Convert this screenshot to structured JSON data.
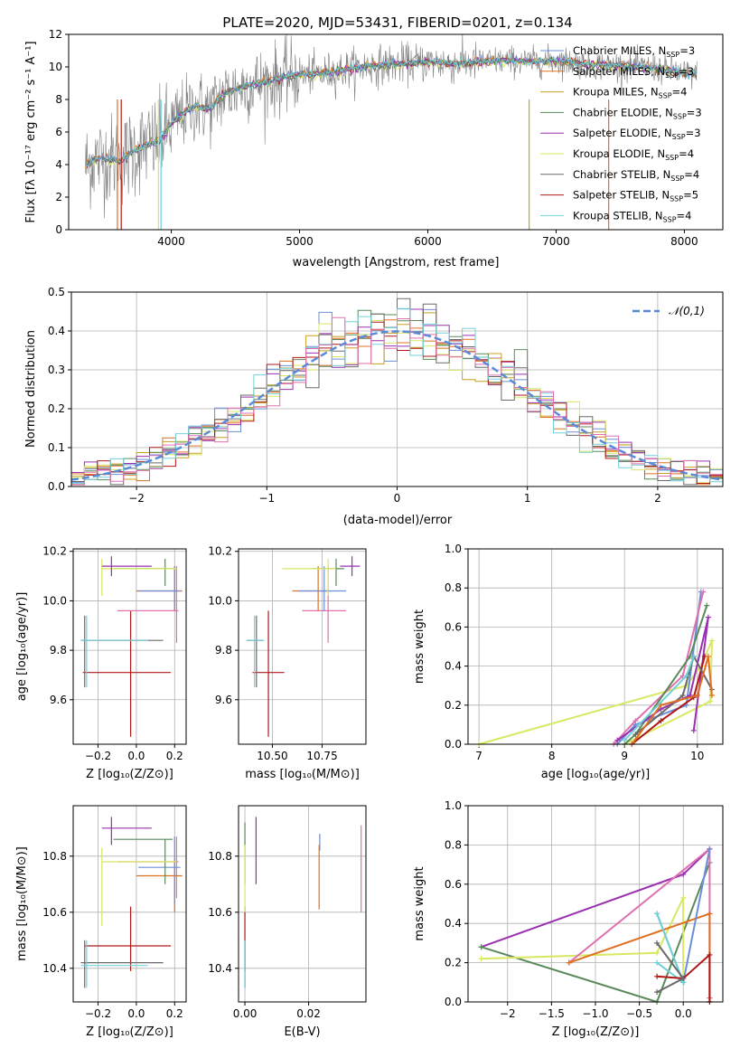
{
  "figure_title": "PLATE=2020, MJD=53431, FIBERID=0201, z=0.134",
  "colors": {
    "Chabrier MILES": "#6a8fd8",
    "Salpeter MILES": "#e07020",
    "Kroupa MILES": "#c8a020",
    "Chabrier ELODIE": "#5a8a5a",
    "Salpeter ELODIE": "#9a30b0",
    "Kroupa ELODIE": "#d8e860",
    "Chabrier STELIB": "#6a6a6a",
    "Salpeter STELIB": "#b01818",
    "Kroupa STELIB": "#70d0d8",
    "pink": "#e070b0",
    "gaussian": "#5a8ad8"
  },
  "chart_data": [
    {
      "id": "spectrum",
      "type": "line",
      "title": "PLATE=2020, MJD=53431, FIBERID=0201, z=0.134",
      "xlabel": "wavelength [Angstrom, rest frame]",
      "ylabel": "Flux [fλ 10⁻¹⁷ erg cm⁻² s⁻¹ A⁻¹]",
      "xlim": [
        3200,
        8300
      ],
      "ylim": [
        0,
        12
      ],
      "xticks": [
        4000,
        5000,
        6000,
        7000,
        8000
      ],
      "yticks": [
        0,
        2,
        4,
        6,
        8,
        10,
        12
      ],
      "legend_position": "right",
      "legend": [
        "Chabrier MILES, N_SSP=3",
        "Salpeter MILES, N_SSP=3",
        "Kroupa MILES, N_SSP=4",
        "Chabrier ELODIE, N_SSP=3",
        "Salpeter ELODIE, N_SSP=3",
        "Kroupa ELODIE, N_SSP=4",
        "Chabrier STELIB, N_SSP=4",
        "Salpeter STELIB, N_SSP=5",
        "Kroupa STELIB, N_SSP=4"
      ],
      "model_curve": {
        "x": [
          3330,
          3400,
          3500,
          3600,
          3700,
          3800,
          3900,
          4000,
          4100,
          4200,
          4300,
          4400,
          4500,
          4600,
          4700,
          4800,
          4900,
          5000,
          5200,
          5400,
          5600,
          5800,
          6000,
          6200,
          6400,
          6600,
          6800,
          7000,
          7200,
          7400,
          7600,
          7800,
          8000,
          8100
        ],
        "y": [
          3.9,
          4.3,
          4.4,
          4.2,
          4.8,
          5.2,
          5.4,
          6.5,
          7.2,
          7.6,
          7.4,
          8.3,
          8.6,
          8.9,
          9.0,
          9.2,
          9.4,
          9.5,
          9.6,
          9.9,
          10.1,
          10.2,
          10.3,
          10.2,
          10.3,
          10.4,
          10.3,
          10.4,
          10.2,
          10.1,
          10.0,
          9.9,
          9.6,
          9.5
        ]
      }
    },
    {
      "id": "residuals",
      "type": "histogram",
      "xlabel": "(data-model)/error",
      "ylabel": "Normed distribution",
      "xlim": [
        -2.5,
        2.5
      ],
      "ylim": [
        0,
        0.5
      ],
      "xticks": [
        -2,
        -1,
        0,
        1,
        2
      ],
      "yticks": [
        0.0,
        0.1,
        0.2,
        0.3,
        0.4,
        0.5
      ],
      "legend": [
        "𝒩(0,1)"
      ],
      "legend_position": "top-right",
      "gaussian": {
        "mean": 0,
        "sigma": 1
      }
    },
    {
      "id": "age_vs_Z",
      "type": "errorbar",
      "xlabel": "Z [log₁₀(Z/Z⊙)]",
      "ylabel": "age  [log₁₀(age/yr)]",
      "xlim": [
        -0.33,
        0.26
      ],
      "ylim": [
        9.42,
        10.21
      ],
      "xticks": [
        -0.2,
        0.0,
        0.2
      ],
      "yticks": [
        9.6,
        9.8,
        10.0,
        10.2
      ]
    },
    {
      "id": "age_vs_mass",
      "type": "errorbar",
      "xlabel": "mass [log₁₀(M/M⊙)]",
      "xlim": [
        10.33,
        10.97
      ],
      "ylim": [
        9.42,
        10.21
      ],
      "xticks": [
        10.5,
        10.75
      ],
      "yticks": [
        9.6,
        9.8,
        10.0,
        10.2
      ]
    },
    {
      "id": "massweight_vs_age",
      "type": "line",
      "xlabel": "age  [log₁₀(age/yr)]",
      "ylabel": "mass weight",
      "xlim": [
        6.85,
        10.35
      ],
      "ylim": [
        0,
        1
      ],
      "xticks": [
        7,
        8,
        9,
        10
      ],
      "yticks": [
        0.0,
        0.2,
        0.4,
        0.6,
        0.8,
        1.0
      ]
    },
    {
      "id": "mass_vs_Z",
      "type": "errorbar",
      "xlabel": "Z [log₁₀(Z/Z⊙)]",
      "ylabel": "mass [log₁₀(M/M⊙)]",
      "xlim": [
        -0.33,
        0.26
      ],
      "ylim": [
        10.28,
        10.98
      ],
      "xticks": [
        -0.2,
        0.0,
        0.2
      ],
      "yticks": [
        10.4,
        10.6,
        10.8
      ]
    },
    {
      "id": "mass_vs_ebv",
      "type": "errorbar",
      "xlabel": "E(B-V)",
      "xlim": [
        -0.002,
        0.038
      ],
      "ylim": [
        10.28,
        10.98
      ],
      "xticks": [
        0.0,
        0.02
      ],
      "yticks": [
        10.4,
        10.6,
        10.8
      ]
    },
    {
      "id": "massweight_vs_Z",
      "type": "line",
      "xlabel": "Z [log₁₀(Z/Z⊙)]",
      "ylabel": "mass weight",
      "xlim": [
        -2.45,
        0.45
      ],
      "ylim": [
        0,
        1
      ],
      "xticks": [
        -2.0,
        -1.5,
        -1.0,
        -0.5,
        0.0
      ],
      "yticks": [
        0.0,
        0.2,
        0.4,
        0.6,
        0.8,
        1.0
      ]
    }
  ],
  "errorbars": {
    "age_vs_Z": [
      {
        "c": "#b01818",
        "x": -0.03,
        "xe": [
          -0.28,
          0.18
        ],
        "y": 9.71,
        "ye": [
          9.45,
          9.96
        ]
      },
      {
        "c": "#6a6a6a",
        "x": -0.27,
        "xe": [
          -0.29,
          0.14
        ],
        "y": 9.84,
        "ye": [
          9.65,
          9.94
        ]
      },
      {
        "c": "#70d0d8",
        "x": -0.26,
        "xe": [
          -0.29,
          0.06
        ],
        "y": 9.84,
        "ye": [
          9.65,
          9.94
        ]
      },
      {
        "c": "#e070b0",
        "x": 0.21,
        "xe": [
          -0.1,
          0.22
        ],
        "y": 9.96,
        "ye": [
          9.83,
          10.14
        ]
      },
      {
        "c": "#e07020",
        "x": 0.2,
        "xe": [
          0.0,
          0.24
        ],
        "y": 10.04,
        "ye": [
          9.96,
          10.14
        ]
      },
      {
        "c": "#6a8fd8",
        "x": 0.2,
        "xe": [
          0.01,
          0.23
        ],
        "y": 10.04,
        "ye": [
          9.96,
          10.14
        ]
      },
      {
        "c": "#5a8a5a",
        "x": 0.15,
        "xe": [
          -0.12,
          0.19
        ],
        "y": 10.13,
        "ye": [
          10.06,
          10.17
        ]
      },
      {
        "c": "#d8e860",
        "x": -0.18,
        "xe": [
          -0.18,
          0.21
        ],
        "y": 10.13,
        "ye": [
          10.02,
          10.17
        ]
      },
      {
        "c": "#9a30b0",
        "x": -0.13,
        "xe": [
          -0.18,
          0.08
        ],
        "y": 10.14,
        "ye": [
          10.1,
          10.18
        ]
      }
    ],
    "age_vs_mass": [
      {
        "c": "#b01818",
        "x": 10.48,
        "xe": [
          10.4,
          10.56
        ],
        "y": 9.71,
        "ye": [
          9.45,
          9.96
        ]
      },
      {
        "c": "#6a6a6a",
        "x": 10.42,
        "xe": [
          10.37,
          10.45
        ],
        "y": 9.84,
        "ye": [
          9.65,
          9.94
        ]
      },
      {
        "c": "#70d0d8",
        "x": 10.41,
        "xe": [
          10.37,
          10.46
        ],
        "y": 9.84,
        "ye": [
          9.65,
          9.94
        ]
      },
      {
        "c": "#e070b0",
        "x": 10.78,
        "xe": [
          10.65,
          10.87
        ],
        "y": 9.96,
        "ye": [
          9.83,
          10.14
        ]
      },
      {
        "c": "#e07020",
        "x": 10.73,
        "xe": [
          10.6,
          10.79
        ],
        "y": 10.04,
        "ye": [
          9.96,
          10.14
        ]
      },
      {
        "c": "#6a8fd8",
        "x": 10.76,
        "xe": [
          10.63,
          10.87
        ],
        "y": 10.04,
        "ye": [
          9.96,
          10.14
        ]
      },
      {
        "c": "#5a8a5a",
        "x": 10.82,
        "xe": [
          10.7,
          10.86
        ],
        "y": 10.13,
        "ye": [
          10.06,
          10.17
        ]
      },
      {
        "c": "#d8e860",
        "x": 10.78,
        "xe": [
          10.55,
          10.82
        ],
        "y": 10.13,
        "ye": [
          10.02,
          10.17
        ]
      },
      {
        "c": "#9a30b0",
        "x": 10.9,
        "xe": [
          10.84,
          10.94
        ],
        "y": 10.14,
        "ye": [
          10.1,
          10.18
        ]
      }
    ],
    "mass_vs_Z": [
      {
        "c": "#b01818",
        "x": -0.03,
        "xe": [
          -0.27,
          0.18
        ],
        "y": 10.48,
        "ye": [
          10.39,
          10.62
        ]
      },
      {
        "c": "#6a6a6a",
        "x": -0.27,
        "xe": [
          -0.29,
          0.14
        ],
        "y": 10.42,
        "ye": [
          10.33,
          10.5
        ]
      },
      {
        "c": "#70d0d8",
        "x": -0.26,
        "xe": [
          -0.29,
          0.06
        ],
        "y": 10.41,
        "ye": [
          10.33,
          10.5
        ]
      },
      {
        "c": "#e070b0",
        "x": 0.21,
        "xe": [
          -0.1,
          0.22
        ],
        "y": 10.78,
        "ye": [
          10.65,
          10.87
        ]
      },
      {
        "c": "#e07020",
        "x": 0.2,
        "xe": [
          0.0,
          0.24
        ],
        "y": 10.73,
        "ye": [
          10.6,
          10.79
        ]
      },
      {
        "c": "#6a8fd8",
        "x": 0.2,
        "xe": [
          0.01,
          0.23
        ],
        "y": 10.76,
        "ye": [
          10.63,
          10.87
        ]
      },
      {
        "c": "#5a8a5a",
        "x": 0.15,
        "xe": [
          -0.12,
          0.19
        ],
        "y": 10.86,
        "ye": [
          10.7,
          10.86
        ]
      },
      {
        "c": "#d8e860",
        "x": -0.18,
        "xe": [
          -0.18,
          0.21
        ],
        "y": 10.78,
        "ye": [
          10.55,
          10.83
        ]
      },
      {
        "c": "#9a30b0",
        "x": -0.13,
        "xe": [
          -0.18,
          0.08
        ],
        "y": 10.9,
        "ye": [
          10.84,
          10.94
        ]
      }
    ],
    "mass_vs_ebv": [
      {
        "c": "#b01818",
        "x": 0.0,
        "ye": [
          10.39,
          10.62
        ]
      },
      {
        "c": "#6a6a6a",
        "x": 0.0,
        "ye": [
          10.33,
          10.5
        ]
      },
      {
        "c": "#70d0d8",
        "x": 0.0,
        "ye": [
          10.33,
          10.5
        ]
      },
      {
        "c": "#5a8a5a",
        "x": 0.0,
        "ye": [
          10.7,
          10.92
        ]
      },
      {
        "c": "#d8e860",
        "x": 0.0,
        "ye": [
          10.6,
          10.84
        ]
      },
      {
        "c": "#9a30b0",
        "x": 0.0035,
        "ye": [
          10.7,
          10.94
        ]
      },
      {
        "c": "#e07020",
        "x": 0.0233,
        "ye": [
          10.61,
          10.84
        ]
      },
      {
        "c": "#6a8fd8",
        "x": 0.0235,
        "ye": [
          10.82,
          10.88
        ]
      },
      {
        "c": "#e070b0",
        "x": 0.0365,
        "ye": [
          10.6,
          10.91
        ]
      }
    ]
  },
  "mass_weight_series": {
    "vs_age": [
      {
        "c": "#d8e860",
        "pts": [
          [
            7.0,
            0.0
          ],
          [
            9.85,
            0.3
          ],
          [
            10.05,
            0.4
          ],
          [
            10.2,
            0.53
          ],
          [
            10.18,
            0.22
          ],
          [
            9.0,
            0.0
          ]
        ]
      },
      {
        "c": "#6a8fd8",
        "pts": [
          [
            8.9,
            0.0
          ],
          [
            9.15,
            0.1
          ],
          [
            9.85,
            0.2
          ],
          [
            10.05,
            0.78
          ]
        ]
      },
      {
        "c": "#e070b0",
        "pts": [
          [
            8.85,
            0.0
          ],
          [
            9.15,
            0.12
          ],
          [
            9.8,
            0.35
          ],
          [
            10.08,
            0.78
          ]
        ]
      },
      {
        "c": "#5a8a5a",
        "pts": [
          [
            9.0,
            0.0
          ],
          [
            9.15,
            0.05
          ],
          [
            9.9,
            0.45
          ],
          [
            10.13,
            0.71
          ]
        ]
      },
      {
        "c": "#9a30b0",
        "pts": [
          [
            8.9,
            0.02
          ],
          [
            9.5,
            0.18
          ],
          [
            9.9,
            0.25
          ],
          [
            10.15,
            0.65
          ],
          [
            9.95,
            0.07
          ]
        ]
      },
      {
        "c": "#b01818",
        "pts": [
          [
            9.1,
            0.0
          ],
          [
            9.5,
            0.12
          ],
          [
            9.95,
            0.24
          ],
          [
            10.1,
            0.45
          ]
        ]
      },
      {
        "c": "#6a6a6a",
        "pts": [
          [
            9.15,
            0.05
          ],
          [
            9.8,
            0.25
          ],
          [
            9.95,
            0.45
          ],
          [
            10.2,
            0.28
          ]
        ]
      },
      {
        "c": "#70d0d8",
        "pts": [
          [
            9.0,
            0.02
          ],
          [
            9.2,
            0.1
          ],
          [
            9.85,
            0.35
          ],
          [
            9.95,
            0.45
          ]
        ]
      },
      {
        "c": "#e07020",
        "pts": [
          [
            9.1,
            0.0
          ],
          [
            9.5,
            0.2
          ],
          [
            10.0,
            0.25
          ],
          [
            10.15,
            0.45
          ],
          [
            10.2,
            0.25
          ]
        ]
      }
    ],
    "vs_Z": [
      {
        "c": "#9a30b0",
        "pts": [
          [
            -2.3,
            0.28
          ],
          [
            0.0,
            0.65
          ],
          [
            0.3,
            0.78
          ]
        ]
      },
      {
        "c": "#5a8a5a",
        "pts": [
          [
            -2.3,
            0.28
          ],
          [
            -0.3,
            0.0
          ],
          [
            0.3,
            0.71
          ]
        ]
      },
      {
        "c": "#d8e860",
        "pts": [
          [
            -2.3,
            0.22
          ],
          [
            -0.3,
            0.25
          ],
          [
            0.0,
            0.53
          ],
          [
            0.0,
            0.1
          ]
        ]
      },
      {
        "c": "#e070b0",
        "pts": [
          [
            -1.3,
            0.2
          ],
          [
            0.3,
            0.78
          ],
          [
            0.3,
            0.02
          ]
        ]
      },
      {
        "c": "#e07020",
        "pts": [
          [
            -1.3,
            0.2
          ],
          [
            0.3,
            0.45
          ],
          [
            0.3,
            0.0
          ]
        ]
      },
      {
        "c": "#6a8fd8",
        "pts": [
          [
            -0.3,
            0.45
          ],
          [
            0.0,
            0.1
          ],
          [
            0.3,
            0.78
          ]
        ]
      },
      {
        "c": "#70d0d8",
        "pts": [
          [
            -0.3,
            0.45
          ],
          [
            0.0,
            0.1
          ],
          [
            -0.3,
            0.2
          ]
        ]
      },
      {
        "c": "#b01818",
        "pts": [
          [
            -0.3,
            0.13
          ],
          [
            0.0,
            0.12
          ],
          [
            0.3,
            0.24
          ],
          [
            0.3,
            0.0
          ]
        ]
      },
      {
        "c": "#6a6a6a",
        "pts": [
          [
            -0.3,
            0.3
          ],
          [
            0.0,
            0.12
          ],
          [
            -0.3,
            0.05
          ]
        ]
      }
    ]
  }
}
